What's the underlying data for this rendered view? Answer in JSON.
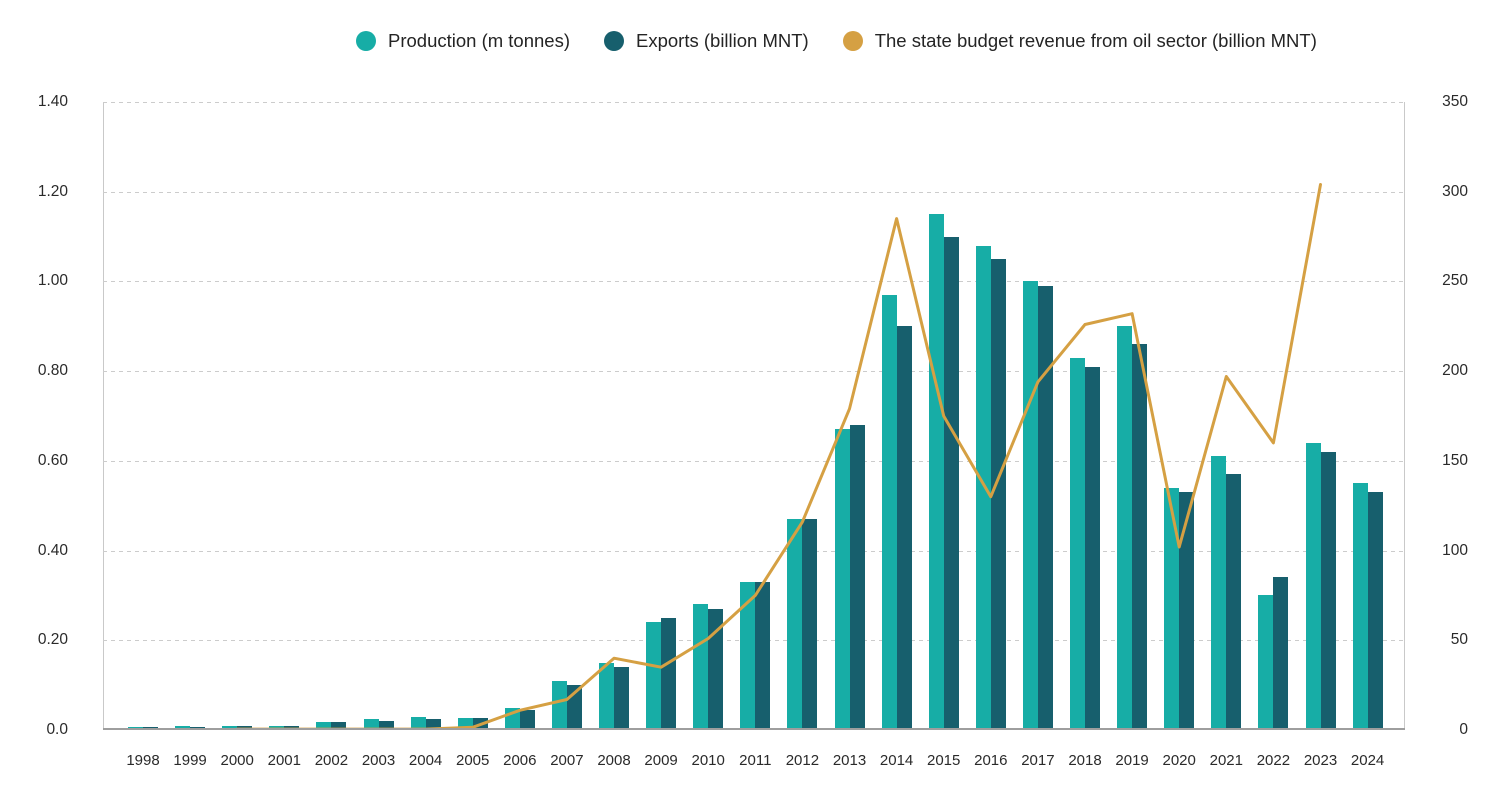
{
  "chart_data": {
    "type": "bar",
    "subtype": "combo-bar-line-dual-axis",
    "title": "",
    "categories": [
      "1998",
      "1999",
      "2000",
      "2001",
      "2002",
      "2003",
      "2004",
      "2005",
      "2006",
      "2007",
      "2008",
      "2009",
      "2010",
      "2011",
      "2012",
      "2013",
      "2014",
      "2015",
      "2016",
      "2017",
      "2018",
      "2019",
      "2020",
      "2021",
      "2022",
      "2023",
      "2024"
    ],
    "series": [
      {
        "name": "Production (m tonnes)",
        "type": "bar",
        "axis": "left",
        "color": "#17ADA6",
        "values": [
          0.005,
          0.01,
          0.008,
          0.01,
          0.018,
          0.025,
          0.03,
          0.027,
          0.05,
          0.11,
          0.15,
          0.24,
          0.28,
          0.33,
          0.47,
          0.67,
          0.97,
          1.15,
          1.08,
          1.0,
          0.83,
          0.9,
          0.54,
          0.61,
          0.3,
          0.64,
          0.55
        ]
      },
      {
        "name": "Exports (billion MNT)",
        "type": "bar",
        "axis": "left",
        "color": "#175F6D",
        "values": [
          0.005,
          0.003,
          0.008,
          0.01,
          0.018,
          0.02,
          0.025,
          0.027,
          0.045,
          0.1,
          0.14,
          0.25,
          0.27,
          0.33,
          0.47,
          0.68,
          0.9,
          1.1,
          1.05,
          0.99,
          0.81,
          0.86,
          0.53,
          0.57,
          0.34,
          0.62,
          0.53
        ]
      },
      {
        "name": "The state budget revenue from oil sector (billion MNT)",
        "type": "line",
        "axis": "right",
        "color": "#D5A043",
        "values": [
          null,
          null,
          0.5,
          0.5,
          0.5,
          0.5,
          0.5,
          1.5,
          11,
          17,
          40,
          35,
          51,
          75,
          116,
          179,
          285,
          175,
          130,
          194,
          226,
          232,
          102,
          197,
          160,
          304,
          null
        ]
      }
    ],
    "left_axis": {
      "min": 0,
      "max": 1.4,
      "ticks": [
        "1.40",
        "1.20",
        "1.00",
        "0.80",
        "0.60",
        "0.40",
        "0.20",
        "0.0"
      ]
    },
    "right_axis": {
      "min": 0,
      "max": 350,
      "ticks": [
        "350",
        "300",
        "250",
        "200",
        "150",
        "100",
        "50",
        "0"
      ]
    },
    "grid": "horizontal dashed",
    "legend_position": "top"
  },
  "colors": {
    "background": "#ffffff",
    "gridline": "#cccccc",
    "axis_line": "#9e9e9e",
    "plot_border": "#c9c9c9",
    "tick_text": "#2a2a2a",
    "legend_text": "#242424"
  }
}
